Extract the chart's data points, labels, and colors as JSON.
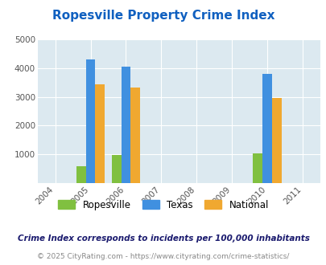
{
  "title": "Ropesville Property Crime Index",
  "years": [
    2004,
    2005,
    2006,
    2007,
    2008,
    2009,
    2010,
    2011
  ],
  "data": {
    "2005": {
      "ropesville": 580,
      "texas": 4300,
      "national": 3440
    },
    "2006": {
      "ropesville": 960,
      "texas": 4070,
      "national": 3340
    },
    "2010": {
      "ropesville": 1020,
      "texas": 3800,
      "national": 2960
    }
  },
  "colors": {
    "ropesville": "#80c040",
    "texas": "#4090e0",
    "national": "#f0a830"
  },
  "ylim": [
    0,
    5000
  ],
  "yticks": [
    0,
    1000,
    2000,
    3000,
    4000,
    5000
  ],
  "bg_color": "#dce9f0",
  "title_color": "#1060c0",
  "legend_labels": [
    "Ropesville",
    "Texas",
    "National"
  ],
  "footnote1": "Crime Index corresponds to incidents per 100,000 inhabitants",
  "footnote2": "© 2025 CityRating.com - https://www.cityrating.com/crime-statistics/",
  "bar_width": 0.27
}
